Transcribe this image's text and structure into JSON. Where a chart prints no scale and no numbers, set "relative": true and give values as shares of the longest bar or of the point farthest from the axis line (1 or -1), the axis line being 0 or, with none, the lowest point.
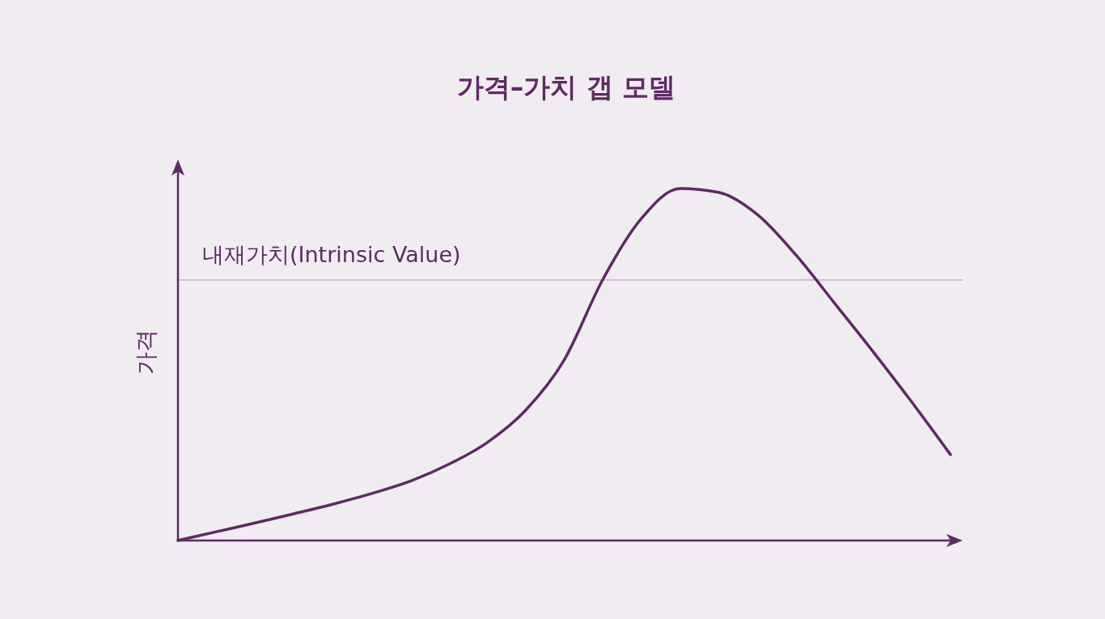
{
  "chart_data": {
    "type": "line",
    "title": "가격–가치 갭 모델",
    "ylabel": "가격",
    "relative": true,
    "categories": [
      null,
      null,
      null,
      null,
      null,
      null,
      null,
      null,
      null,
      null,
      null,
      null,
      null,
      null,
      null,
      null,
      null,
      null,
      null,
      null,
      null
    ],
    "series": [
      {
        "color": "#5e2a64",
        "values": [
          0,
          0.025,
          0.05,
          0.076,
          0.103,
          0.133,
          0.168,
          0.216,
          0.278,
          0.37,
          0.513,
          0.742,
          0.915,
          1,
          0.989,
          0.926,
          0.811,
          0.674,
          0.536,
          0.393,
          0.244
        ]
      }
    ],
    "ref_lines": [
      {
        "axis": "y",
        "value": 0.74,
        "label": "내재가치(Intrinsic Value)",
        "color": "#c9aec9"
      }
    ]
  }
}
